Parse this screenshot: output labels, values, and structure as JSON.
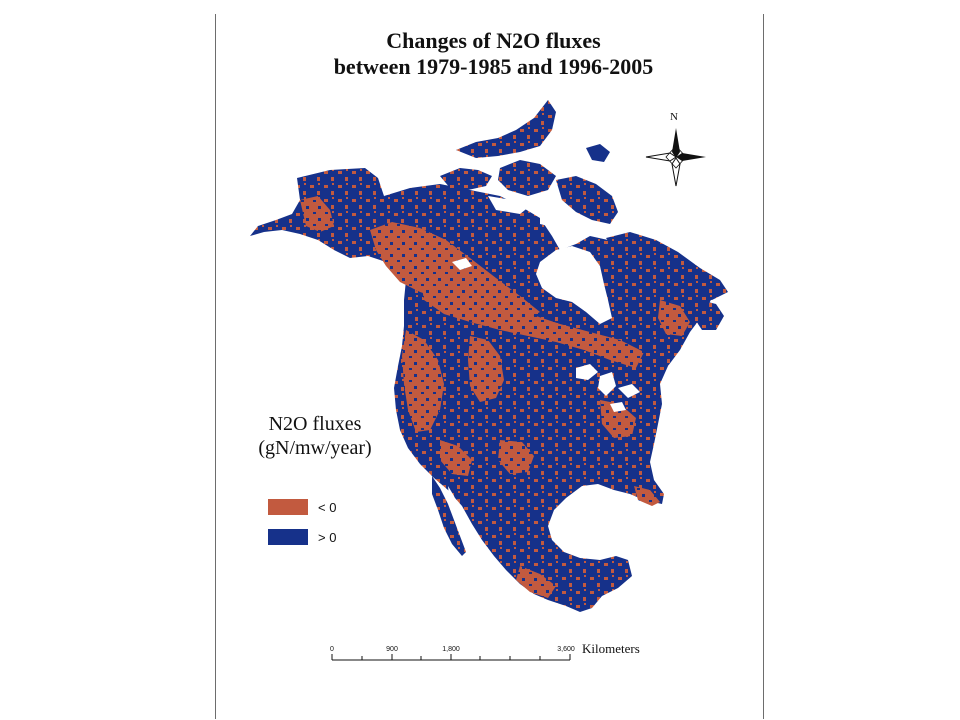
{
  "title": {
    "line1": "Changes of N2O fluxes",
    "line2": "between 1979-1985 and 1996-2005"
  },
  "legend": {
    "title_line1": "N2O fluxes",
    "title_line2": "(gN/mw/year)",
    "items": [
      {
        "label": "< 0",
        "color": "#c25a3f"
      },
      {
        "label": "> 0",
        "color": "#16318a"
      }
    ]
  },
  "scale_bar": {
    "ticks": [
      "0",
      "900",
      "1,800",
      "3,600"
    ],
    "unit": "Kilometers"
  },
  "north_arrow": {
    "label": "N"
  },
  "colors": {
    "negative": "#c25a3f",
    "positive": "#16318a",
    "water": "#ffffff"
  }
}
